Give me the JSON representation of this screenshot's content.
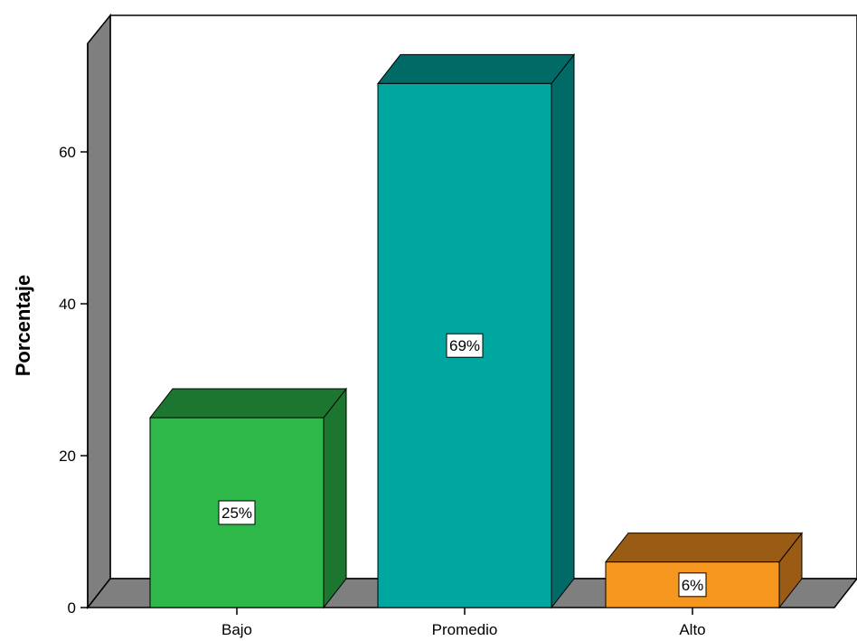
{
  "chart_data": {
    "type": "bar",
    "categories": [
      "Bajo",
      "Promedio",
      "Alto"
    ],
    "values": [
      25,
      69,
      6
    ],
    "data_labels": [
      "25%",
      "69%",
      "6%"
    ],
    "colors": [
      "#2fb84a",
      "#00a6a0",
      "#f5961e"
    ],
    "side_colors": [
      "#1d7630",
      "#006a66",
      "#9a5c14"
    ],
    "title": "",
    "xlabel": "",
    "ylabel": "Porcentaje",
    "ylim": [
      0,
      70
    ],
    "yticks": [
      0,
      20,
      40,
      60
    ],
    "grid": false,
    "style": "3d"
  }
}
